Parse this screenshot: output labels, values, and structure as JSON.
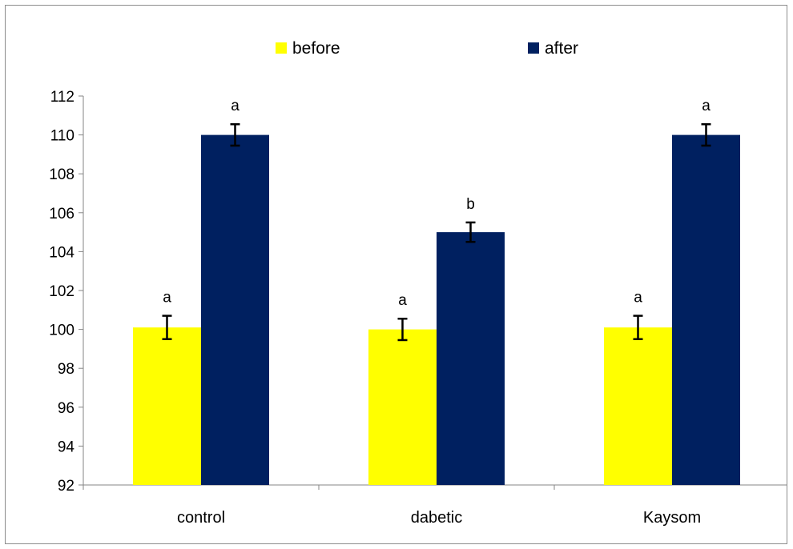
{
  "chart_data": {
    "type": "bar",
    "categories": [
      "control",
      "dabetic",
      "Kaysom"
    ],
    "series": [
      {
        "name": "before",
        "color": "#ffff00",
        "values": [
          100.1,
          100.0,
          100.1
        ],
        "errors": [
          0.6,
          0.55,
          0.6
        ],
        "labels": [
          "a",
          "a",
          "a"
        ]
      },
      {
        "name": "after",
        "color": "#002060",
        "values": [
          110.0,
          105.0,
          110.0
        ],
        "errors": [
          0.55,
          0.5,
          0.55
        ],
        "labels": [
          "a",
          "b",
          "a"
        ]
      }
    ],
    "ylim": [
      92,
      112
    ],
    "yticks": [
      "92",
      "94",
      "96",
      "98",
      "100",
      "102",
      "104",
      "106",
      "108",
      "110",
      "112"
    ],
    "legend_position": "top",
    "grid": false
  }
}
